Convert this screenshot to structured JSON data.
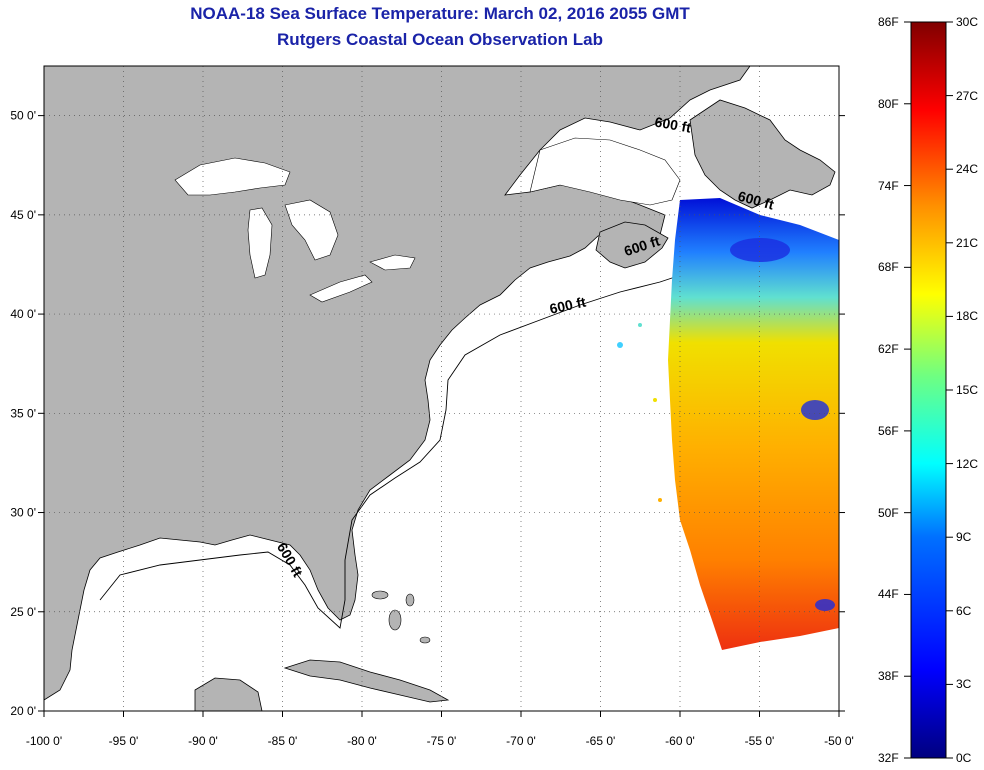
{
  "header": {
    "title": "NOAA-18 Sea Surface Temperature:  March 02, 2016 2055 GMT",
    "subtitle": "Rutgers Coastal Ocean Observation Lab"
  },
  "map": {
    "lon_range": [
      -100,
      -50
    ],
    "lat_range": [
      20,
      52.5
    ],
    "lon_ticks": [
      "-100 0'",
      "-95 0'",
      "-90 0'",
      "-85 0'",
      "-80 0'",
      "-75 0'",
      "-70 0'",
      "-65 0'",
      "-60 0'",
      "-55 0'",
      "-50 0'"
    ],
    "lat_ticks": [
      "20 0'",
      "25 0'",
      "30 0'",
      "35 0'",
      "40 0'",
      "45 0'",
      "50 0'"
    ],
    "contour_label": "600 ft",
    "land_color": "#b4b4b4",
    "ocean_color": "#ffffff"
  },
  "colorbar": {
    "fahrenheit_labels": [
      "86F",
      "80F",
      "74F",
      "68F",
      "62F",
      "56F",
      "50F",
      "44F",
      "38F",
      "32F"
    ],
    "celsius_labels": [
      "30C",
      "27C",
      "24C",
      "21C",
      "18C",
      "15C",
      "12C",
      "9C",
      "6C",
      "3C",
      "0C"
    ],
    "colors": [
      "#000080",
      "#0000ff",
      "#0080ff",
      "#00ffff",
      "#80ff80",
      "#ffff00",
      "#ff8000",
      "#ff0000",
      "#800000"
    ]
  }
}
